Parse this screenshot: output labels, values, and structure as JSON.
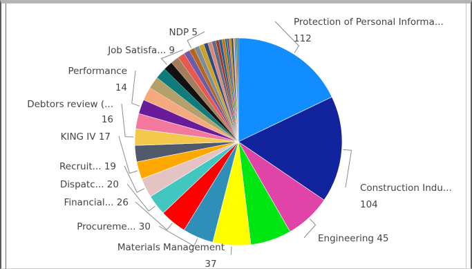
{
  "chart_data": {
    "type": "pie",
    "title": "",
    "labeled_slices": [
      {
        "label": "Protection of Personal Informa...",
        "value": 112,
        "color": "#118DFF"
      },
      {
        "label": "Construction Indu...",
        "value": 104,
        "color": "#12239E"
      },
      {
        "label": "Engineering",
        "value": 45,
        "color": "#E044A7"
      },
      {
        "label": "",
        "value": 40,
        "color": "#00E612"
      },
      {
        "label": "Materials Management",
        "value": 37,
        "color": "#FFFF00"
      },
      {
        "label": "Procureme...",
        "value": 30,
        "color": "#2F8FB8"
      },
      {
        "label": "Financial...",
        "value": 26,
        "color": "#FF0000"
      },
      {
        "label": "Dispatc...",
        "value": 20,
        "color": "#41C7BF"
      },
      {
        "label": "Recruit...",
        "value": 19,
        "color": "#E6C3C3"
      },
      {
        "label": "KING IV",
        "value": 17,
        "color": "#FFA800"
      },
      {
        "label": "",
        "value": 16,
        "color": "#505A6A"
      },
      {
        "label": "Debtors review (...",
        "value": 16,
        "color": "#F2C94C"
      },
      {
        "label": "",
        "value": 15,
        "color": "#F2789E"
      },
      {
        "label": "Performance",
        "value": 14,
        "color": "#6A1B9A"
      },
      {
        "label": "",
        "value": 13,
        "color": "#F5A97F"
      },
      {
        "label": "",
        "value": 12,
        "color": "#B3A06A"
      },
      {
        "label": "",
        "value": 11,
        "color": "#0E7C7B"
      },
      {
        "label": "Job Satisfa...",
        "value": 9,
        "color": "#111111"
      },
      {
        "label": "",
        "value": 8,
        "color": "#A47E5C"
      },
      {
        "label": "",
        "value": 7,
        "color": "#E8594D"
      },
      {
        "label": "",
        "value": 6,
        "color": "#6E5BA6"
      },
      {
        "label": "NDP",
        "value": 5,
        "color": "#B5651D"
      }
    ],
    "tail_slices": [
      5,
      5,
      4,
      4,
      4,
      3,
      3,
      3,
      2,
      2,
      2,
      2,
      1,
      1,
      1,
      1,
      1
    ],
    "tail_colors": [
      "#7B8C9A",
      "#C9A227",
      "#2E4A7D",
      "#D98880",
      "#5D6D7E",
      "#A93226",
      "#1F618D",
      "#CA6F1E",
      "#117A65",
      "#7D3C98",
      "#B7950B",
      "#34495E",
      "#E59866",
      "#3498DB",
      "#873600",
      "#16A085",
      "#2C3E50"
    ],
    "legend": "none"
  }
}
